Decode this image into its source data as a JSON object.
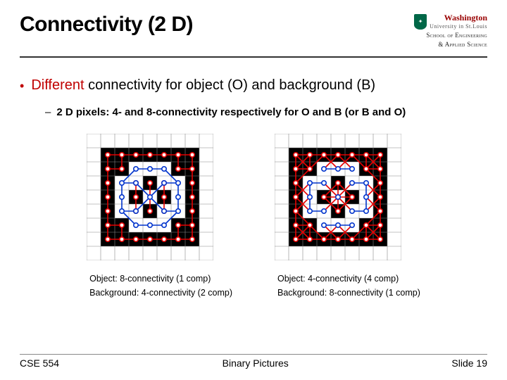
{
  "header": {
    "title": "Connectivity (2 D)",
    "logo": {
      "name_top": "Washington",
      "name_bot": "University in St.Louis",
      "dept_line1": "School of Engineering",
      "dept_line2": "& Applied Science"
    }
  },
  "bullet": {
    "lead_red": "Different",
    "rest": " connectivity for object (O) and background (B)"
  },
  "subbullet": "2 D pixels: 4- and 8-connectivity respectively for O and B (or B and O)",
  "figures": {
    "cell_size": 20,
    "grid_n": 9,
    "grid_line_color": "#888888",
    "black_fill": "#000000",
    "white_fill": "#ffffff",
    "obj_color": "#0033cc",
    "bg_color": "#e60000",
    "node_fill": "#ffffff",
    "stroke_w": 1.6,
    "node_r": 3.2,
    "white_cells": [
      [
        3,
        2
      ],
      [
        4,
        2
      ],
      [
        5,
        2
      ],
      [
        2,
        3
      ],
      [
        3,
        3
      ],
      [
        5,
        3
      ],
      [
        6,
        3
      ],
      [
        2,
        4
      ],
      [
        4,
        4
      ],
      [
        6,
        4
      ],
      [
        2,
        5
      ],
      [
        3,
        5
      ],
      [
        5,
        5
      ],
      [
        6,
        5
      ],
      [
        3,
        6
      ],
      [
        4,
        6
      ],
      [
        5,
        6
      ]
    ],
    "left": {
      "caption1": "Object: 8-connectivity (1 comp)",
      "caption2": "Background: 4-connectivity (2 comp)",
      "blue_edges": [
        [
          3,
          2,
          4,
          2
        ],
        [
          4,
          2,
          5,
          2
        ],
        [
          3,
          2,
          2,
          3
        ],
        [
          5,
          2,
          6,
          3
        ],
        [
          2,
          3,
          3,
          3
        ],
        [
          5,
          3,
          6,
          3
        ],
        [
          2,
          3,
          2,
          4
        ],
        [
          6,
          3,
          6,
          4
        ],
        [
          3,
          3,
          4,
          4
        ],
        [
          5,
          3,
          4,
          4
        ],
        [
          2,
          4,
          2,
          5
        ],
        [
          6,
          4,
          6,
          5
        ],
        [
          4,
          4,
          3,
          5
        ],
        [
          4,
          4,
          5,
          5
        ],
        [
          2,
          5,
          3,
          5
        ],
        [
          5,
          5,
          6,
          5
        ],
        [
          2,
          5,
          3,
          6
        ],
        [
          6,
          5,
          5,
          6
        ],
        [
          3,
          6,
          4,
          6
        ],
        [
          4,
          6,
          5,
          6
        ]
      ],
      "blue_nodes": [
        [
          3,
          2
        ],
        [
          4,
          2
        ],
        [
          5,
          2
        ],
        [
          2,
          3
        ],
        [
          3,
          3
        ],
        [
          5,
          3
        ],
        [
          6,
          3
        ],
        [
          2,
          4
        ],
        [
          4,
          4
        ],
        [
          6,
          4
        ],
        [
          2,
          5
        ],
        [
          3,
          5
        ],
        [
          5,
          5
        ],
        [
          6,
          5
        ],
        [
          3,
          6
        ],
        [
          4,
          6
        ],
        [
          5,
          6
        ]
      ],
      "red_edges": [
        [
          1,
          1,
          2,
          1
        ],
        [
          2,
          1,
          3,
          1
        ],
        [
          3,
          1,
          4,
          1
        ],
        [
          4,
          1,
          5,
          1
        ],
        [
          5,
          1,
          6,
          1
        ],
        [
          6,
          1,
          7,
          1
        ],
        [
          1,
          1,
          1,
          2
        ],
        [
          7,
          1,
          7,
          2
        ],
        [
          1,
          2,
          2,
          2
        ],
        [
          6,
          2,
          7,
          2
        ],
        [
          1,
          2,
          1,
          3
        ],
        [
          7,
          2,
          7,
          3
        ],
        [
          1,
          3,
          1,
          4
        ],
        [
          7,
          3,
          7,
          4
        ],
        [
          4,
          3,
          4,
          4
        ],
        [
          4,
          4,
          4,
          5
        ],
        [
          1,
          4,
          1,
          5
        ],
        [
          7,
          4,
          7,
          5
        ],
        [
          1,
          5,
          1,
          6
        ],
        [
          7,
          5,
          7,
          6
        ],
        [
          1,
          6,
          2,
          6
        ],
        [
          6,
          6,
          7,
          6
        ],
        [
          1,
          6,
          1,
          7
        ],
        [
          7,
          6,
          7,
          7
        ],
        [
          1,
          7,
          2,
          7
        ],
        [
          2,
          7,
          3,
          7
        ],
        [
          3,
          7,
          4,
          7
        ],
        [
          4,
          7,
          5,
          7
        ],
        [
          5,
          7,
          6,
          7
        ],
        [
          6,
          7,
          7,
          7
        ],
        [
          2,
          6,
          2,
          7
        ],
        [
          6,
          6,
          6,
          7
        ],
        [
          2,
          1,
          2,
          2
        ],
        [
          6,
          1,
          6,
          2
        ],
        [
          3,
          4,
          3,
          5
        ],
        [
          5,
          4,
          5,
          5
        ],
        [
          3,
          4,
          3,
          3
        ],
        [
          5,
          4,
          5,
          3
        ]
      ],
      "red_nodes": [
        [
          1,
          1
        ],
        [
          2,
          1
        ],
        [
          3,
          1
        ],
        [
          4,
          1
        ],
        [
          5,
          1
        ],
        [
          6,
          1
        ],
        [
          7,
          1
        ],
        [
          1,
          2
        ],
        [
          2,
          2
        ],
        [
          6,
          2
        ],
        [
          7,
          2
        ],
        [
          1,
          3
        ],
        [
          4,
          3
        ],
        [
          7,
          3
        ],
        [
          1,
          4
        ],
        [
          3,
          4
        ],
        [
          5,
          4
        ],
        [
          7,
          4
        ],
        [
          1,
          5
        ],
        [
          4,
          5
        ],
        [
          7,
          5
        ],
        [
          1,
          6
        ],
        [
          2,
          6
        ],
        [
          6,
          6
        ],
        [
          7,
          6
        ],
        [
          1,
          7
        ],
        [
          2,
          7
        ],
        [
          3,
          7
        ],
        [
          4,
          7
        ],
        [
          5,
          7
        ],
        [
          6,
          7
        ],
        [
          7,
          7
        ],
        [
          3,
          3
        ],
        [
          5,
          3
        ],
        [
          3,
          5
        ],
        [
          5,
          5
        ]
      ]
    },
    "right": {
      "caption1": "Object: 4-connectivity (4 comp)",
      "caption2": "Background: 8-connectivity (1 comp)",
      "blue_edges": [
        [
          3,
          2,
          4,
          2
        ],
        [
          4,
          2,
          5,
          2
        ],
        [
          2,
          3,
          3,
          3
        ],
        [
          5,
          3,
          6,
          3
        ],
        [
          2,
          3,
          2,
          4
        ],
        [
          6,
          3,
          6,
          4
        ],
        [
          2,
          4,
          2,
          5
        ],
        [
          6,
          4,
          6,
          5
        ],
        [
          2,
          5,
          3,
          5
        ],
        [
          5,
          5,
          6,
          5
        ],
        [
          3,
          6,
          4,
          6
        ],
        [
          4,
          6,
          5,
          6
        ]
      ],
      "blue_nodes": [
        [
          3,
          2
        ],
        [
          4,
          2
        ],
        [
          5,
          2
        ],
        [
          2,
          3
        ],
        [
          3,
          3
        ],
        [
          5,
          3
        ],
        [
          6,
          3
        ],
        [
          2,
          4
        ],
        [
          4,
          4
        ],
        [
          6,
          4
        ],
        [
          2,
          5
        ],
        [
          3,
          5
        ],
        [
          5,
          5
        ],
        [
          6,
          5
        ],
        [
          3,
          6
        ],
        [
          4,
          6
        ],
        [
          5,
          6
        ]
      ],
      "red_edges": [
        [
          1,
          1,
          2,
          1
        ],
        [
          2,
          1,
          3,
          1
        ],
        [
          3,
          1,
          4,
          1
        ],
        [
          4,
          1,
          5,
          1
        ],
        [
          5,
          1,
          6,
          1
        ],
        [
          6,
          1,
          7,
          1
        ],
        [
          1,
          1,
          1,
          2
        ],
        [
          7,
          1,
          7,
          2
        ],
        [
          1,
          2,
          2,
          2
        ],
        [
          6,
          2,
          7,
          2
        ],
        [
          1,
          2,
          1,
          3
        ],
        [
          7,
          2,
          7,
          3
        ],
        [
          1,
          3,
          1,
          4
        ],
        [
          7,
          3,
          7,
          4
        ],
        [
          1,
          4,
          1,
          5
        ],
        [
          7,
          4,
          7,
          5
        ],
        [
          1,
          5,
          1,
          6
        ],
        [
          7,
          5,
          7,
          6
        ],
        [
          1,
          6,
          2,
          6
        ],
        [
          6,
          6,
          7,
          6
        ],
        [
          1,
          6,
          1,
          7
        ],
        [
          7,
          6,
          7,
          7
        ],
        [
          1,
          7,
          2,
          7
        ],
        [
          2,
          7,
          3,
          7
        ],
        [
          3,
          7,
          4,
          7
        ],
        [
          4,
          7,
          5,
          7
        ],
        [
          5,
          7,
          6,
          7
        ],
        [
          6,
          7,
          7,
          7
        ],
        [
          2,
          6,
          2,
          7
        ],
        [
          6,
          6,
          6,
          7
        ],
        [
          2,
          1,
          2,
          2
        ],
        [
          6,
          1,
          6,
          2
        ],
        [
          1,
          1,
          2,
          2
        ],
        [
          2,
          1,
          1,
          2
        ],
        [
          6,
          1,
          7,
          2
        ],
        [
          7,
          1,
          6,
          2
        ],
        [
          1,
          6,
          2,
          7
        ],
        [
          2,
          6,
          1,
          7
        ],
        [
          6,
          6,
          7,
          7
        ],
        [
          7,
          6,
          6,
          7
        ],
        [
          2,
          2,
          3,
          1
        ],
        [
          6,
          2,
          5,
          1
        ],
        [
          2,
          6,
          3,
          7
        ],
        [
          6,
          6,
          5,
          7
        ],
        [
          1,
          3,
          2,
          2
        ],
        [
          7,
          3,
          6,
          2
        ],
        [
          1,
          5,
          2,
          6
        ],
        [
          7,
          5,
          6,
          6
        ],
        [
          3,
          1,
          4,
          2
        ],
        [
          4,
          1,
          3,
          2
        ],
        [
          4,
          1,
          5,
          2
        ],
        [
          5,
          1,
          4,
          2
        ],
        [
          3,
          7,
          4,
          6
        ],
        [
          4,
          7,
          3,
          6
        ],
        [
          4,
          7,
          5,
          6
        ],
        [
          5,
          7,
          4,
          6
        ],
        [
          1,
          3,
          2,
          4
        ],
        [
          1,
          4,
          2,
          3
        ],
        [
          1,
          4,
          2,
          5
        ],
        [
          1,
          5,
          2,
          4
        ],
        [
          7,
          3,
          6,
          4
        ],
        [
          7,
          4,
          6,
          3
        ],
        [
          7,
          4,
          6,
          5
        ],
        [
          7,
          5,
          6,
          4
        ],
        [
          4,
          3,
          3,
          4
        ],
        [
          4,
          3,
          5,
          4
        ],
        [
          3,
          4,
          4,
          5
        ],
        [
          5,
          4,
          4,
          5
        ],
        [
          4,
          3,
          4,
          4
        ],
        [
          4,
          4,
          4,
          5
        ],
        [
          3,
          4,
          4,
          4
        ],
        [
          4,
          4,
          5,
          4
        ],
        [
          3,
          3,
          4,
          4
        ],
        [
          5,
          3,
          4,
          4
        ],
        [
          3,
          5,
          4,
          4
        ],
        [
          5,
          5,
          4,
          4
        ]
      ],
      "red_nodes": [
        [
          1,
          1
        ],
        [
          2,
          1
        ],
        [
          3,
          1
        ],
        [
          4,
          1
        ],
        [
          5,
          1
        ],
        [
          6,
          1
        ],
        [
          7,
          1
        ],
        [
          1,
          2
        ],
        [
          2,
          2
        ],
        [
          6,
          2
        ],
        [
          7,
          2
        ],
        [
          1,
          3
        ],
        [
          4,
          3
        ],
        [
          7,
          3
        ],
        [
          1,
          4
        ],
        [
          3,
          4
        ],
        [
          4,
          4
        ],
        [
          5,
          4
        ],
        [
          7,
          4
        ],
        [
          1,
          5
        ],
        [
          4,
          5
        ],
        [
          7,
          5
        ],
        [
          1,
          6
        ],
        [
          2,
          6
        ],
        [
          6,
          6
        ],
        [
          7,
          6
        ],
        [
          1,
          7
        ],
        [
          2,
          7
        ],
        [
          3,
          7
        ],
        [
          4,
          7
        ],
        [
          5,
          7
        ],
        [
          6,
          7
        ],
        [
          7,
          7
        ]
      ]
    }
  },
  "footer": {
    "left": "CSE 554",
    "center": "Binary Pictures",
    "right": "Slide 19"
  }
}
